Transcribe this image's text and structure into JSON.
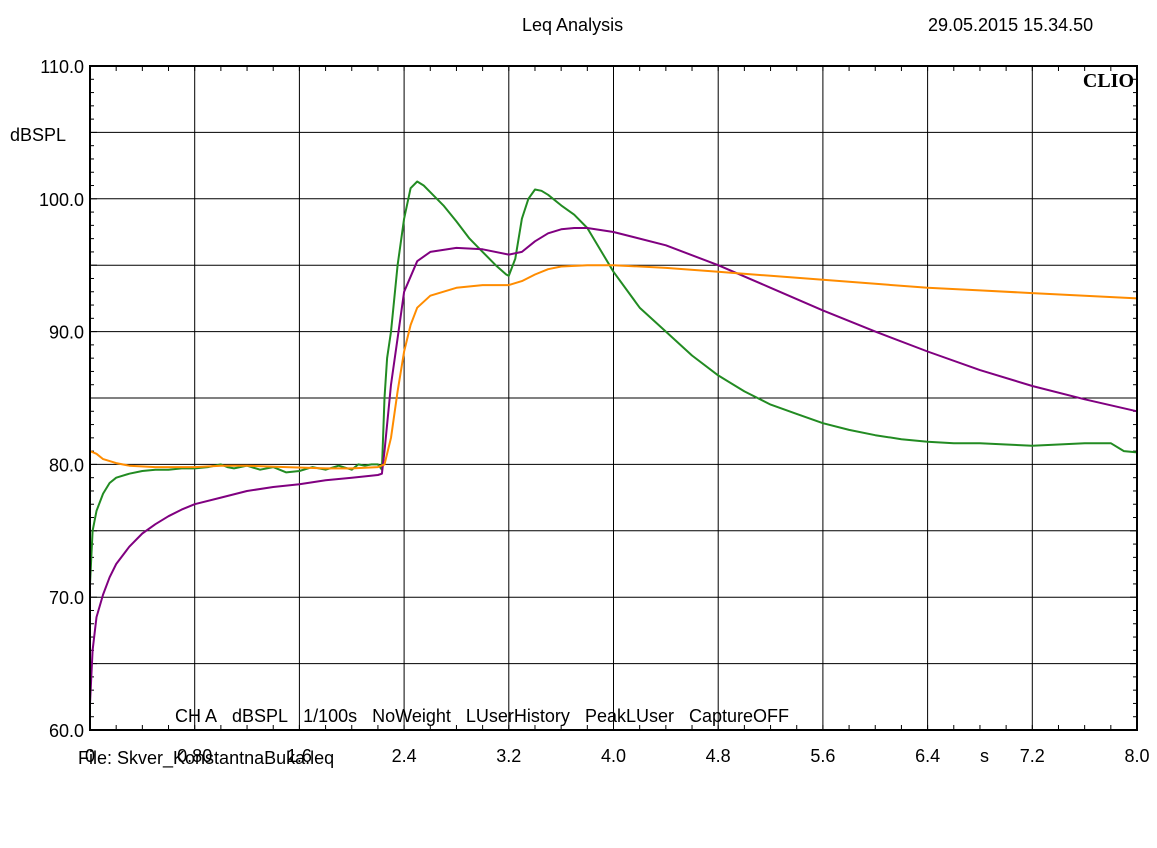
{
  "header": {
    "title": "Leq Analysis",
    "timestamp": "29.05.2015 15.34.50"
  },
  "logo": "CLIO",
  "settings_line": [
    "CH A",
    "dBSPL",
    "1/100s",
    "NoWeight",
    "LUserHistory",
    "PeakLUser",
    "CaptureOFF"
  ],
  "file_line": "File: Skver_KonstantnaBuka.leq",
  "chart_data": {
    "type": "line",
    "title": "Leq Analysis",
    "ylabel": "dBSPL",
    "xlabel": "s",
    "xlim": [
      0,
      8.0
    ],
    "ylim": [
      60,
      110
    ],
    "x_ticks": [
      0,
      0.8,
      1.6,
      2.4,
      3.2,
      4.0,
      4.8,
      5.6,
      6.4,
      7.2,
      8.0
    ],
    "x_tick_labels": [
      "0",
      "0.80",
      "1.6",
      "2.4",
      "3.2",
      "4.0",
      "4.8",
      "5.6",
      "6.4",
      "7.2",
      "8.0"
    ],
    "y_ticks": [
      60,
      70,
      80,
      90,
      100,
      110
    ],
    "y_tick_labels": [
      "60.0",
      "70.0",
      "80.0",
      "90.0",
      "100.0",
      "110.0"
    ],
    "grid": true,
    "colors": {
      "green": "#228B22",
      "purple": "#800080",
      "orange": "#FF8C00",
      "grid": "#000000"
    },
    "series": [
      {
        "color": "green",
        "x": [
          0.0,
          0.02,
          0.05,
          0.1,
          0.15,
          0.2,
          0.3,
          0.4,
          0.5,
          0.6,
          0.7,
          0.8,
          0.9,
          1.0,
          1.05,
          1.1,
          1.2,
          1.3,
          1.4,
          1.5,
          1.6,
          1.7,
          1.8,
          1.9,
          2.0,
          2.05,
          2.1,
          2.15,
          2.2,
          2.23,
          2.25,
          2.27,
          2.3,
          2.35,
          2.4,
          2.45,
          2.5,
          2.55,
          2.6,
          2.7,
          2.8,
          2.9,
          3.0,
          3.1,
          3.18,
          3.2,
          3.25,
          3.3,
          3.35,
          3.4,
          3.45,
          3.5,
          3.6,
          3.7,
          3.8,
          4.0,
          4.2,
          4.4,
          4.6,
          4.8,
          5.0,
          5.2,
          5.4,
          5.6,
          5.8,
          6.0,
          6.2,
          6.4,
          6.6,
          6.8,
          7.0,
          7.2,
          7.4,
          7.6,
          7.8,
          7.9,
          8.0
        ],
        "y": [
          71.0,
          75.0,
          76.5,
          77.8,
          78.6,
          79.0,
          79.3,
          79.5,
          79.6,
          79.6,
          79.7,
          79.7,
          79.8,
          80.0,
          79.8,
          79.7,
          79.9,
          79.6,
          79.8,
          79.4,
          79.5,
          79.8,
          79.6,
          79.9,
          79.6,
          80.0,
          79.9,
          80.0,
          80.0,
          79.6,
          85.0,
          88.0,
          90.0,
          95.0,
          98.5,
          100.8,
          101.3,
          101.0,
          100.5,
          99.5,
          98.3,
          97.0,
          96.0,
          95.0,
          94.3,
          94.2,
          95.5,
          98.5,
          100.0,
          100.7,
          100.6,
          100.3,
          99.5,
          98.8,
          97.8,
          94.5,
          91.8,
          90.0,
          88.2,
          86.7,
          85.5,
          84.5,
          83.8,
          83.1,
          82.6,
          82.2,
          81.9,
          81.7,
          81.6,
          81.6,
          81.5,
          81.4,
          81.5,
          81.6,
          81.6,
          81.0,
          80.9
        ]
      },
      {
        "color": "purple",
        "x": [
          0.0,
          0.02,
          0.05,
          0.1,
          0.15,
          0.2,
          0.3,
          0.4,
          0.5,
          0.6,
          0.7,
          0.8,
          1.0,
          1.2,
          1.4,
          1.6,
          1.8,
          2.0,
          2.2,
          2.23,
          2.25,
          2.3,
          2.35,
          2.4,
          2.5,
          2.6,
          2.8,
          3.0,
          3.2,
          3.3,
          3.4,
          3.5,
          3.6,
          3.7,
          3.8,
          4.0,
          4.4,
          4.8,
          5.2,
          5.6,
          6.0,
          6.4,
          6.8,
          7.2,
          7.6,
          8.0
        ],
        "y": [
          62.0,
          66.0,
          68.5,
          70.2,
          71.5,
          72.5,
          73.8,
          74.8,
          75.5,
          76.1,
          76.6,
          77.0,
          77.5,
          78.0,
          78.3,
          78.5,
          78.8,
          79.0,
          79.2,
          79.3,
          81.0,
          86.0,
          89.5,
          93.0,
          95.3,
          96.0,
          96.3,
          96.2,
          95.8,
          96.0,
          96.8,
          97.4,
          97.7,
          97.8,
          97.8,
          97.5,
          96.5,
          95.0,
          93.3,
          91.6,
          90.0,
          88.5,
          87.1,
          85.9,
          84.9,
          84.0
        ]
      },
      {
        "color": "orange",
        "x": [
          0.0,
          0.05,
          0.1,
          0.2,
          0.3,
          0.5,
          0.8,
          1.0,
          1.2,
          1.5,
          1.8,
          2.0,
          2.2,
          2.25,
          2.3,
          2.35,
          2.4,
          2.45,
          2.5,
          2.6,
          2.8,
          3.0,
          3.2,
          3.3,
          3.4,
          3.5,
          3.6,
          3.8,
          4.0,
          4.4,
          4.8,
          5.2,
          5.6,
          6.0,
          6.4,
          6.8,
          7.2,
          7.6,
          8.0
        ],
        "y": [
          81.0,
          80.8,
          80.4,
          80.1,
          79.9,
          79.8,
          79.8,
          79.9,
          79.9,
          79.8,
          79.7,
          79.7,
          79.8,
          80.0,
          82.0,
          85.5,
          88.5,
          90.5,
          91.8,
          92.7,
          93.3,
          93.5,
          93.5,
          93.8,
          94.3,
          94.7,
          94.9,
          95.0,
          95.0,
          94.8,
          94.5,
          94.2,
          93.9,
          93.6,
          93.3,
          93.1,
          92.9,
          92.7,
          92.5
        ]
      }
    ]
  }
}
